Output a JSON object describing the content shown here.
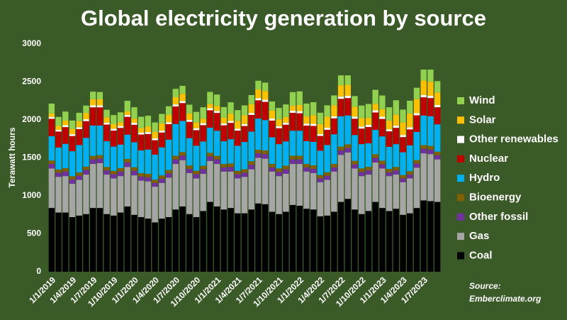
{
  "chart_data": {
    "type": "stacked_bar",
    "title": "Global electricity generation by source",
    "y_label": "Terawatt hours",
    "source": [
      "Source:",
      "Emberclimate.org"
    ],
    "categories": [
      "1/1/2019",
      null,
      null,
      "1/4/2019",
      null,
      null,
      "1/7/2019",
      null,
      null,
      "1/10/2019",
      null,
      null,
      "1/1/2020",
      null,
      null,
      "1/4/2020",
      null,
      null,
      "1/7/2020",
      null,
      null,
      "1/10/2020",
      null,
      null,
      "1/1/2021",
      null,
      null,
      "1/4/2021",
      null,
      null,
      "1/7/2021",
      null,
      null,
      "1/10/2021",
      null,
      null,
      "1/1/2022",
      null,
      null,
      "1/4/2022",
      null,
      null,
      "1/7/2022",
      null,
      null,
      "1/10/2022",
      null,
      null,
      "1/1/2023",
      null,
      null,
      "1/4/2023",
      null,
      null,
      "1/7/2023",
      null,
      null
    ],
    "ylim": [
      0,
      3000
    ],
    "yticks": [
      0,
      500,
      1000,
      1500,
      2000,
      2500,
      3000
    ],
    "grid": false,
    "series": [
      {
        "name": "Coal",
        "color": "#000000",
        "values": [
          840,
          780,
          780,
          720,
          740,
          760,
          840,
          840,
          760,
          740,
          780,
          860,
          750,
          720,
          700,
          650,
          700,
          720,
          820,
          860,
          760,
          720,
          800,
          920,
          860,
          820,
          840,
          770,
          770,
          820,
          900,
          890,
          790,
          760,
          790,
          880,
          870,
          830,
          820,
          730,
          740,
          790,
          920,
          960,
          820,
          760,
          800,
          920,
          840,
          800,
          830,
          750,
          770,
          840,
          940,
          930,
          920
        ]
      },
      {
        "name": "Gas",
        "color": "#a6a6a6",
        "values": [
          520,
          470,
          480,
          440,
          470,
          520,
          580,
          590,
          520,
          490,
          480,
          520,
          520,
          480,
          490,
          470,
          470,
          520,
          600,
          610,
          540,
          510,
          490,
          540,
          560,
          500,
          480,
          460,
          480,
          530,
          600,
          600,
          530,
          500,
          500,
          540,
          550,
          490,
          480,
          450,
          470,
          530,
          620,
          610,
          540,
          500,
          480,
          520,
          520,
          460,
          450,
          430,
          460,
          530,
          620,
          620,
          560
        ]
      },
      {
        "name": "Other fossil",
        "color": "#7030a0",
        "values": [
          60,
          55,
          60,
          55,
          55,
          60,
          60,
          60,
          55,
          55,
          60,
          60,
          60,
          55,
          55,
          50,
          55,
          55,
          60,
          60,
          55,
          55,
          60,
          60,
          60,
          55,
          60,
          55,
          55,
          60,
          60,
          60,
          55,
          55,
          60,
          60,
          60,
          55,
          55,
          50,
          55,
          55,
          60,
          60,
          55,
          55,
          55,
          60,
          55,
          50,
          55,
          50,
          50,
          55,
          60,
          60,
          55
        ]
      },
      {
        "name": "Bioenergy",
        "color": "#806000",
        "values": [
          45,
          42,
          45,
          43,
          44,
          44,
          46,
          46,
          44,
          44,
          45,
          46,
          46,
          43,
          45,
          43,
          44,
          45,
          47,
          47,
          45,
          45,
          46,
          47,
          47,
          44,
          46,
          44,
          45,
          46,
          48,
          48,
          46,
          46,
          47,
          48,
          48,
          45,
          46,
          44,
          45,
          46,
          48,
          48,
          46,
          46,
          47,
          48,
          48,
          45,
          46,
          44,
          45,
          46,
          48,
          48,
          47
        ]
      },
      {
        "name": "Hydro",
        "color": "#00b0f0",
        "values": [
          320,
          290,
          320,
          330,
          360,
          380,
          400,
          390,
          340,
          320,
          310,
          320,
          330,
          300,
          320,
          330,
          370,
          400,
          420,
          410,
          360,
          330,
          320,
          330,
          330,
          300,
          320,
          330,
          360,
          390,
          410,
          400,
          350,
          320,
          320,
          330,
          330,
          300,
          310,
          320,
          360,
          390,
          400,
          380,
          340,
          320,
          310,
          320,
          320,
          290,
          300,
          300,
          340,
          370,
          390,
          390,
          360
        ]
      },
      {
        "name": "Nuclear",
        "color": "#c00000",
        "values": [
          230,
          210,
          220,
          200,
          210,
          220,
          240,
          240,
          220,
          210,
          220,
          235,
          230,
          210,
          205,
          190,
          195,
          205,
          230,
          235,
          215,
          205,
          215,
          230,
          235,
          210,
          215,
          200,
          210,
          220,
          240,
          240,
          220,
          210,
          220,
          235,
          230,
          205,
          210,
          195,
          200,
          210,
          230,
          230,
          215,
          205,
          215,
          230,
          230,
          205,
          215,
          200,
          210,
          220,
          240,
          240,
          225
        ]
      },
      {
        "name": "Other renewables",
        "color": "#ffffff",
        "values": [
          25,
          23,
          25,
          24,
          25,
          25,
          26,
          26,
          25,
          25,
          25,
          26,
          26,
          24,
          25,
          24,
          25,
          25,
          27,
          27,
          26,
          26,
          26,
          27,
          27,
          25,
          26,
          25,
          26,
          26,
          28,
          28,
          27,
          27,
          27,
          28,
          28,
          26,
          27,
          26,
          27,
          27,
          29,
          29,
          28,
          28,
          28,
          29,
          29,
          27,
          28,
          27,
          28,
          28,
          30,
          30,
          29
        ]
      },
      {
        "name": "Solar",
        "color": "#ffc000",
        "values": [
          45,
          50,
          60,
          70,
          80,
          80,
          80,
          80,
          70,
          60,
          50,
          45,
          55,
          60,
          75,
          85,
          95,
          95,
          95,
          95,
          85,
          75,
          60,
          55,
          65,
          75,
          95,
          105,
          115,
          115,
          115,
          115,
          105,
          90,
          75,
          65,
          80,
          95,
          115,
          130,
          145,
          145,
          150,
          145,
          130,
          110,
          95,
          85,
          100,
          115,
          145,
          165,
          180,
          185,
          190,
          185,
          165
        ]
      },
      {
        "name": "Wind",
        "color": "#92d050",
        "values": [
          130,
          120,
          120,
          110,
          110,
          100,
          100,
          95,
          100,
          120,
          130,
          140,
          150,
          150,
          140,
          125,
          125,
          115,
          110,
          105,
          115,
          140,
          150,
          160,
          150,
          140,
          150,
          140,
          130,
          120,
          115,
          110,
          120,
          150,
          165,
          180,
          180,
          170,
          170,
          150,
          150,
          130,
          130,
          125,
          140,
          165,
          180,
          185,
          180,
          175,
          190,
          170,
          170,
          150,
          145,
          160,
          150
        ]
      }
    ]
  }
}
